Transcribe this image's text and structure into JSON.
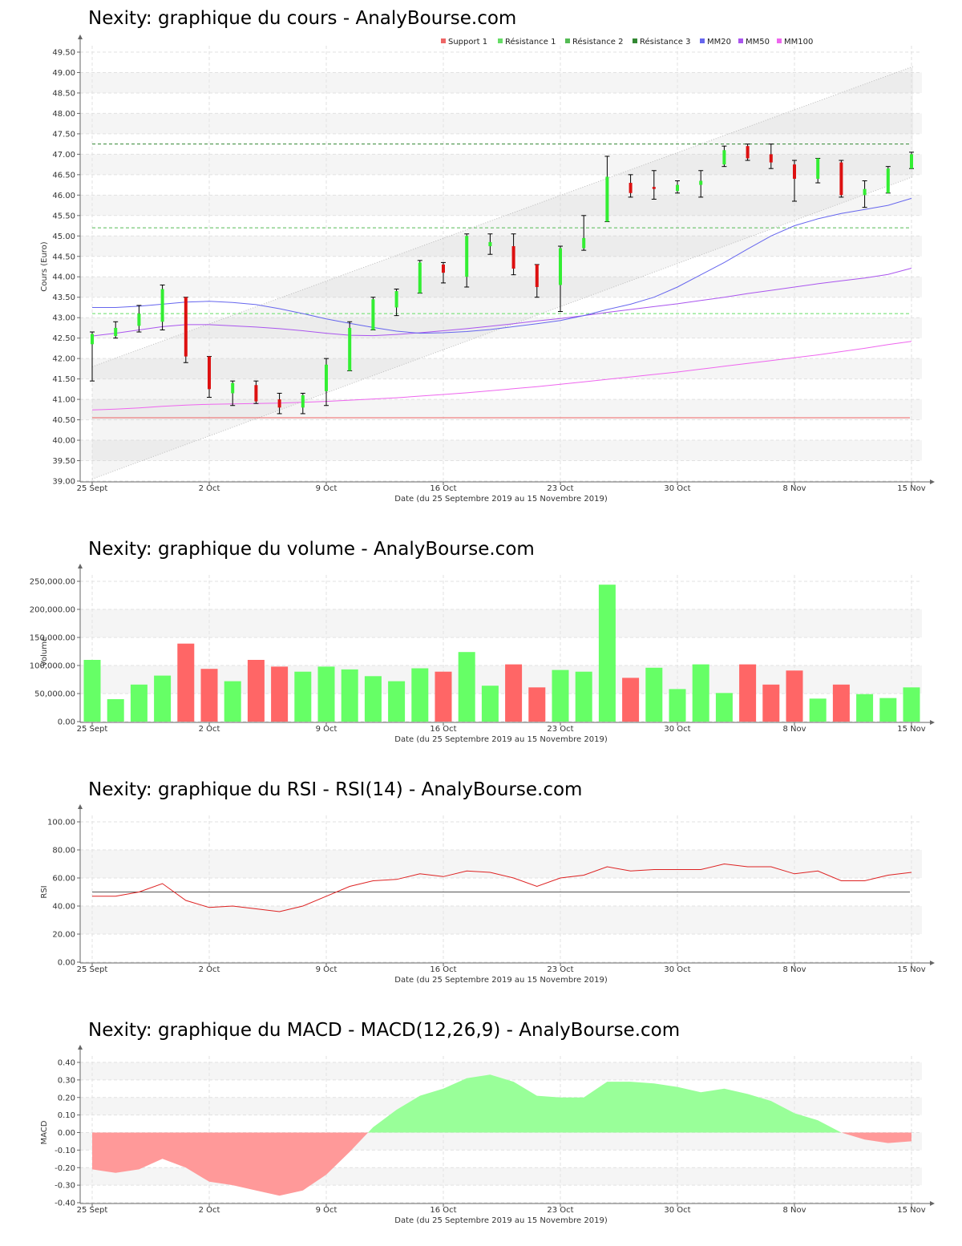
{
  "x_axis": {
    "tick_labels": [
      "25 Sept",
      "2 Oct",
      "9 Oct",
      "16 Oct",
      "23 Oct",
      "30 Oct",
      "8 Nov",
      "15 Nov"
    ],
    "tick_index": [
      0,
      5,
      10,
      15,
      20,
      25,
      30,
      35
    ],
    "label": "Date (du 25 Septembre 2019 au 15 Novembre 2019)"
  },
  "colors": {
    "up": "#33ee33",
    "down": "#dd1111",
    "vol_up": "#66ff66",
    "vol_down": "#ff6666",
    "support": "#ee6666",
    "resistance1": "#66dd66",
    "resistance2": "#55bb55",
    "resistance3": "#338833",
    "mm20": "#6666ee",
    "mm50": "#aa55ee",
    "mm100": "#ee66ee",
    "rsi": "#dd2222",
    "macd_pos": "#99ff99",
    "macd_neg": "#ff9999"
  },
  "price": {
    "title": "Nexity: graphique du cours - AnalyBourse.com",
    "ylabel": "Cours (Euro)",
    "legend": [
      "Support 1",
      "Résistance 1",
      "Résistance 2",
      "Résistance 3",
      "MM20",
      "MM50",
      "MM100"
    ],
    "chart_data": {
      "type": "candlestick",
      "ylim": [
        39,
        49.5
      ],
      "y_ticks": [
        "39.00",
        "39.50",
        "40.00",
        "40.50",
        "41.00",
        "41.50",
        "42.00",
        "42.50",
        "43.00",
        "43.50",
        "44.00",
        "44.50",
        "45.00",
        "45.50",
        "46.00",
        "46.50",
        "47.00",
        "47.50",
        "48.00",
        "48.50",
        "49.00",
        "49.50"
      ],
      "candles": [
        {
          "o": 42.35,
          "c": 42.6,
          "h": 42.65,
          "l": 41.45
        },
        {
          "o": 42.55,
          "c": 42.75,
          "h": 42.9,
          "l": 42.5
        },
        {
          "o": 42.8,
          "c": 43.1,
          "h": 43.3,
          "l": 42.65
        },
        {
          "o": 42.9,
          "c": 43.7,
          "h": 43.8,
          "l": 42.7
        },
        {
          "o": 43.5,
          "c": 42.05,
          "h": 43.5,
          "l": 41.9
        },
        {
          "o": 42.05,
          "c": 41.25,
          "h": 42.05,
          "l": 41.05
        },
        {
          "o": 41.15,
          "c": 41.4,
          "h": 41.45,
          "l": 40.85
        },
        {
          "o": 41.35,
          "c": 40.95,
          "h": 41.45,
          "l": 40.9
        },
        {
          "o": 41.0,
          "c": 40.8,
          "h": 41.15,
          "l": 40.65
        },
        {
          "o": 40.8,
          "c": 41.1,
          "h": 41.15,
          "l": 40.65
        },
        {
          "o": 41.2,
          "c": 41.85,
          "h": 42.0,
          "l": 40.85
        },
        {
          "o": 41.7,
          "c": 42.75,
          "h": 42.9,
          "l": 41.7
        },
        {
          "o": 42.7,
          "c": 43.45,
          "h": 43.5,
          "l": 42.7
        },
        {
          "o": 43.25,
          "c": 43.65,
          "h": 43.7,
          "l": 43.05
        },
        {
          "o": 43.6,
          "c": 44.35,
          "h": 44.4,
          "l": 43.6
        },
        {
          "o": 44.3,
          "c": 44.1,
          "h": 44.35,
          "l": 43.85
        },
        {
          "o": 44.0,
          "c": 45.0,
          "h": 45.05,
          "l": 43.75
        },
        {
          "o": 44.75,
          "c": 44.85,
          "h": 45.05,
          "l": 44.55
        },
        {
          "o": 44.75,
          "c": 44.2,
          "h": 45.05,
          "l": 44.05
        },
        {
          "o": 44.3,
          "c": 43.75,
          "h": 44.3,
          "l": 43.5
        },
        {
          "o": 43.8,
          "c": 44.7,
          "h": 44.75,
          "l": 43.15
        },
        {
          "o": 44.7,
          "c": 44.95,
          "h": 45.5,
          "l": 44.65
        },
        {
          "o": 45.35,
          "c": 46.45,
          "h": 46.95,
          "l": 45.35
        },
        {
          "o": 46.3,
          "c": 46.05,
          "h": 46.5,
          "l": 45.95
        },
        {
          "o": 46.2,
          "c": 46.15,
          "h": 46.6,
          "l": 45.9
        },
        {
          "o": 46.1,
          "c": 46.25,
          "h": 46.35,
          "l": 46.05
        },
        {
          "o": 46.25,
          "c": 46.35,
          "h": 46.6,
          "l": 45.95
        },
        {
          "o": 46.75,
          "c": 47.1,
          "h": 47.2,
          "l": 46.7
        },
        {
          "o": 47.2,
          "c": 46.9,
          "h": 47.25,
          "l": 46.85
        },
        {
          "o": 47.0,
          "c": 46.8,
          "h": 47.25,
          "l": 46.65
        },
        {
          "o": 46.75,
          "c": 46.4,
          "h": 46.85,
          "l": 45.85
        },
        {
          "o": 46.4,
          "c": 46.9,
          "h": 46.9,
          "l": 46.3
        },
        {
          "o": 46.8,
          "c": 46.0,
          "h": 46.85,
          "l": 45.95
        },
        {
          "o": 46.0,
          "c": 46.15,
          "h": 46.35,
          "l": 45.7
        },
        {
          "o": 46.05,
          "c": 46.65,
          "h": 46.7,
          "l": 46.05
        },
        {
          "o": 46.65,
          "c": 47.0,
          "h": 47.05,
          "l": 46.65
        }
      ],
      "support_1": 40.55,
      "resistance_1": 43.1,
      "resistance_2": 45.2,
      "resistance_3": 47.25,
      "channel_lower": [
        39.05,
        46.45
      ],
      "channel_upper": [
        41.8,
        49.15
      ],
      "mm20": [
        43.25,
        43.25,
        43.28,
        43.33,
        43.38,
        43.4,
        43.37,
        43.32,
        43.22,
        43.1,
        42.97,
        42.86,
        42.76,
        42.67,
        42.62,
        42.63,
        42.66,
        42.71,
        42.78,
        42.85,
        42.93,
        43.05,
        43.2,
        43.33,
        43.5,
        43.75,
        44.05,
        44.35,
        44.68,
        45.0,
        45.25,
        45.42,
        45.55,
        45.65,
        45.75,
        45.92
      ],
      "mm50": [
        42.55,
        42.62,
        42.7,
        42.78,
        42.83,
        42.83,
        42.8,
        42.77,
        42.73,
        42.68,
        42.62,
        42.57,
        42.56,
        42.59,
        42.63,
        42.68,
        42.73,
        42.79,
        42.85,
        42.92,
        42.98,
        43.05,
        43.13,
        43.2,
        43.27,
        43.34,
        43.42,
        43.5,
        43.59,
        43.67,
        43.75,
        43.83,
        43.9,
        43.97,
        44.06,
        44.21
      ],
      "mm100": [
        40.74,
        40.76,
        40.79,
        40.83,
        40.86,
        40.88,
        40.89,
        40.9,
        40.91,
        40.93,
        40.95,
        40.98,
        41.01,
        41.04,
        41.08,
        41.12,
        41.16,
        41.21,
        41.26,
        41.31,
        41.37,
        41.43,
        41.49,
        41.55,
        41.61,
        41.67,
        41.74,
        41.81,
        41.88,
        41.95,
        42.02,
        42.09,
        42.17,
        42.25,
        42.34,
        42.42
      ]
    }
  },
  "volume": {
    "title": "Nexity: graphique du volume - AnalyBourse.com",
    "ylabel": "Volume",
    "chart_data": {
      "type": "bar",
      "ylim": [
        0,
        250000
      ],
      "y_ticks": [
        "0.00",
        "50,000.00",
        "100,000.00",
        "150,000.00",
        "200,000.00",
        "250,000.00"
      ],
      "values": [
        110000,
        40000,
        66000,
        82000,
        139000,
        94000,
        72000,
        110000,
        98000,
        89000,
        98000,
        93000,
        81000,
        72000,
        95000,
        89000,
        124000,
        64000,
        102000,
        61000,
        92000,
        89000,
        244000,
        78000,
        96000,
        58000,
        102000,
        51000,
        102000,
        66000,
        91000,
        41000,
        66000,
        49000,
        42000,
        61000
      ],
      "up": [
        true,
        true,
        true,
        true,
        false,
        false,
        true,
        false,
        false,
        true,
        true,
        true,
        true,
        true,
        true,
        false,
        true,
        true,
        false,
        false,
        true,
        true,
        true,
        false,
        true,
        true,
        true,
        true,
        false,
        false,
        false,
        true,
        false,
        true,
        true,
        true
      ]
    }
  },
  "rsi": {
    "title": "Nexity: graphique du RSI - RSI(14) - AnalyBourse.com",
    "ylabel": "RSI",
    "chart_data": {
      "type": "line",
      "ylim": [
        0,
        100
      ],
      "y_ticks": [
        "0.00",
        "20.00",
        "40.00",
        "60.00",
        "80.00",
        "100.00"
      ],
      "reference": 50,
      "values": [
        47,
        47,
        50,
        56,
        44,
        39,
        40,
        38,
        36,
        40,
        47,
        54,
        58,
        59,
        63,
        61,
        65,
        64,
        60,
        54,
        60,
        62,
        68,
        65,
        66,
        66,
        66,
        70,
        68,
        68,
        63,
        65,
        58,
        58,
        62,
        64
      ]
    }
  },
  "macd": {
    "title": "Nexity: graphique du MACD - MACD(12,26,9) - AnalyBourse.com",
    "ylabel": "MACD",
    "chart_data": {
      "type": "area",
      "ylim": [
        -0.4,
        0.4
      ],
      "y_ticks": [
        "-0.40",
        "-0.30",
        "-0.20",
        "-0.10",
        "0.00",
        "0.10",
        "0.20",
        "0.30",
        "0.40"
      ],
      "values": [
        -0.21,
        -0.23,
        -0.21,
        -0.15,
        -0.2,
        -0.28,
        -0.3,
        -0.33,
        -0.36,
        -0.33,
        -0.24,
        -0.11,
        0.03,
        0.13,
        0.21,
        0.25,
        0.31,
        0.33,
        0.29,
        0.21,
        0.2,
        0.2,
        0.29,
        0.29,
        0.28,
        0.26,
        0.23,
        0.25,
        0.22,
        0.18,
        0.11,
        0.07,
        0.0,
        -0.04,
        -0.06,
        -0.05
      ]
    }
  }
}
